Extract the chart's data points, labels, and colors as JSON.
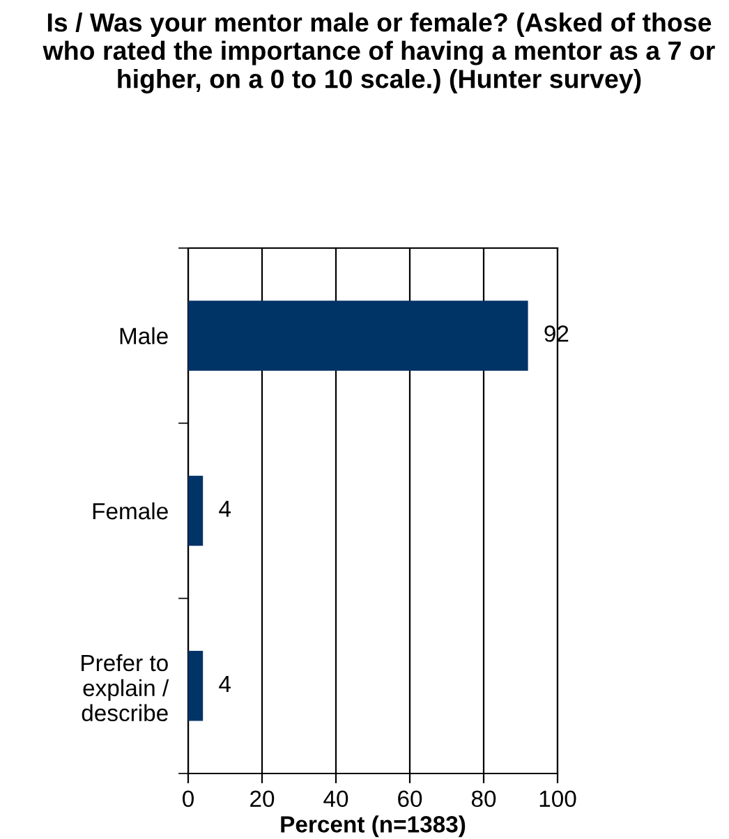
{
  "chart_data": {
    "type": "bar",
    "orientation": "horizontal",
    "title": "Is / Was your mentor male or female? (Asked of those who rated the importance of having a mentor as a 7 or higher, on a 0 to 10 scale.) (Hunter survey)",
    "xlabel": "Percent (n=1383)",
    "categories": [
      "Male",
      "Female",
      "Prefer to\nexplain /\ndescribe"
    ],
    "values": [
      92,
      4,
      4
    ],
    "color": "#003366",
    "xlim": [
      0,
      100
    ],
    "xticks": [
      0,
      20,
      40,
      60,
      80,
      100
    ],
    "grid": "x",
    "data_labels": true
  }
}
